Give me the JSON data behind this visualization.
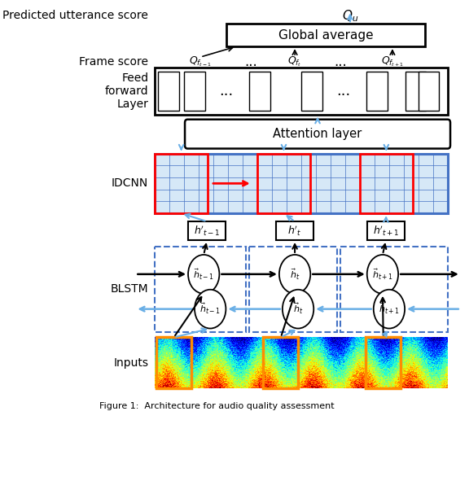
{
  "bg_color": "#ffffff",
  "label_predicted": "Predicted utterance score",
  "label_qu": "$Q_u$",
  "label_global_avg": "Global average",
  "label_frame_score": "Frame score",
  "label_qft_minus": "$Q_{f_{t-1}}$",
  "label_dots1": "...",
  "label_qft": "$Q_{f_t}$",
  "label_dots2": "...",
  "label_qft_plus": "$Q_{f_{t+1}}$",
  "label_feed_forward": "Feed\nforward\nLayer",
  "label_attention": "Attention layer",
  "label_idcnn": "IDCNN",
  "label_blstm": "BLSTM",
  "label_inputs": "Inputs",
  "label_h_prime_minus": "$h'_{t-1}$",
  "label_h_prime": "$h'_t$",
  "label_h_prime_plus": "$h'_{t+1}$",
  "label_hf_minus": "$\\vec{h}_{t-1}$",
  "label_hf": "$\\vec{h}_{t}$",
  "label_hf_plus": "$\\vec{h}_{t+1}$",
  "label_hb_minus": "$\\vec{h}_{t-1}$",
  "label_hb": "$\\vec{h}_{t}$",
  "label_hb_plus": "$\\vec{h}_{t+1}$",
  "caption": "Figure 1:  Architecture for audio quality assessment",
  "blue": "#4472C4",
  "light_blue": "#6AAFE6",
  "red": "#FF0000",
  "orange": "#FF8C00",
  "black": "#000000"
}
